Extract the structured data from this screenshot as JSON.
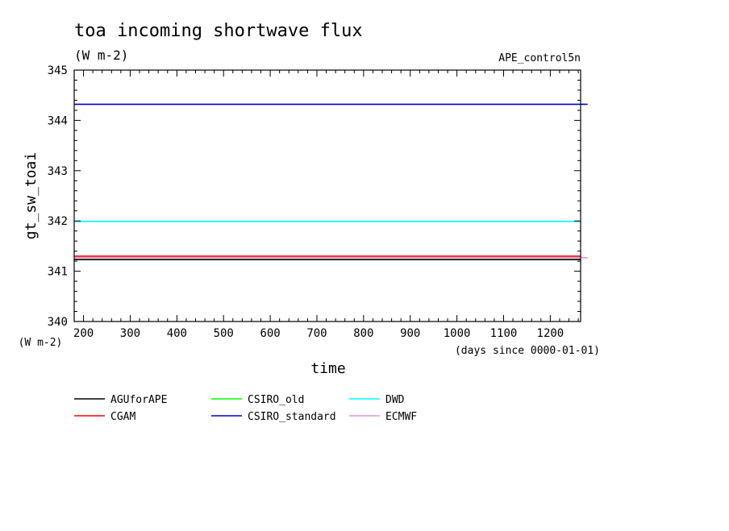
{
  "chart_data": {
    "type": "line",
    "title": "toa incoming shortwave flux",
    "subtitle": "(W m-2)",
    "experiment": "APE_control5n",
    "ylabel": "gt_sw_toai",
    "yunit": "(W m-2)",
    "xlabel": "time",
    "xunit": "(days since 0000-01-01)",
    "xlim": [
      180,
      1265
    ],
    "ylim": [
      340,
      345
    ],
    "xticks": [
      200,
      300,
      400,
      500,
      600,
      700,
      800,
      900,
      1000,
      1100,
      1200
    ],
    "yticks": [
      340,
      341,
      342,
      343,
      344,
      345
    ],
    "grid": false,
    "legend_position": "bottom",
    "series": [
      {
        "name": "AGUforAPE",
        "color": "#000000",
        "x": [
          180,
          1265
        ],
        "values": [
          341.23,
          341.23
        ]
      },
      {
        "name": "CGAM",
        "color": "#ff0000",
        "x": [
          180,
          1265
        ],
        "values": [
          341.3,
          341.3
        ]
      },
      {
        "name": "CSIRO_old",
        "color": "#00ff00",
        "x": [
          180,
          1265
        ],
        "values": [
          341.27,
          341.27
        ]
      },
      {
        "name": "CSIRO_standard",
        "color": "#0000cc",
        "x": [
          180,
          1280
        ],
        "values": [
          344.32,
          344.32
        ]
      },
      {
        "name": "DWD",
        "color": "#00ffff",
        "x": [
          180,
          1265
        ],
        "values": [
          341.99,
          341.99
        ]
      },
      {
        "name": "ECMWF",
        "color": "#dd99dd",
        "x": [
          180,
          1280
        ],
        "values": [
          341.27,
          341.27
        ]
      }
    ]
  }
}
